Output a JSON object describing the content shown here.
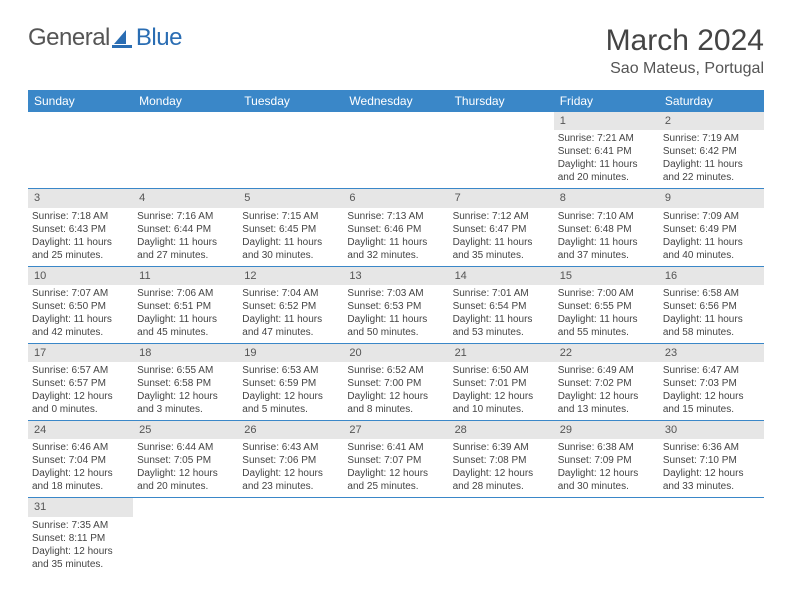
{
  "logo": {
    "general": "General",
    "blue": "Blue"
  },
  "title": "March 2024",
  "location": "Sao Mateus, Portugal",
  "colors": {
    "header_bg": "#3a87c8",
    "header_text": "#ffffff",
    "daynum_bg": "#e6e6e6",
    "row_border": "#3a87c8",
    "text": "#444444"
  },
  "weekdays": [
    "Sunday",
    "Monday",
    "Tuesday",
    "Wednesday",
    "Thursday",
    "Friday",
    "Saturday"
  ],
  "weeks": [
    [
      null,
      null,
      null,
      null,
      null,
      {
        "n": "1",
        "sr": "Sunrise: 7:21 AM",
        "ss": "Sunset: 6:41 PM",
        "dl": "Daylight: 11 hours and 20 minutes."
      },
      {
        "n": "2",
        "sr": "Sunrise: 7:19 AM",
        "ss": "Sunset: 6:42 PM",
        "dl": "Daylight: 11 hours and 22 minutes."
      }
    ],
    [
      {
        "n": "3",
        "sr": "Sunrise: 7:18 AM",
        "ss": "Sunset: 6:43 PM",
        "dl": "Daylight: 11 hours and 25 minutes."
      },
      {
        "n": "4",
        "sr": "Sunrise: 7:16 AM",
        "ss": "Sunset: 6:44 PM",
        "dl": "Daylight: 11 hours and 27 minutes."
      },
      {
        "n": "5",
        "sr": "Sunrise: 7:15 AM",
        "ss": "Sunset: 6:45 PM",
        "dl": "Daylight: 11 hours and 30 minutes."
      },
      {
        "n": "6",
        "sr": "Sunrise: 7:13 AM",
        "ss": "Sunset: 6:46 PM",
        "dl": "Daylight: 11 hours and 32 minutes."
      },
      {
        "n": "7",
        "sr": "Sunrise: 7:12 AM",
        "ss": "Sunset: 6:47 PM",
        "dl": "Daylight: 11 hours and 35 minutes."
      },
      {
        "n": "8",
        "sr": "Sunrise: 7:10 AM",
        "ss": "Sunset: 6:48 PM",
        "dl": "Daylight: 11 hours and 37 minutes."
      },
      {
        "n": "9",
        "sr": "Sunrise: 7:09 AM",
        "ss": "Sunset: 6:49 PM",
        "dl": "Daylight: 11 hours and 40 minutes."
      }
    ],
    [
      {
        "n": "10",
        "sr": "Sunrise: 7:07 AM",
        "ss": "Sunset: 6:50 PM",
        "dl": "Daylight: 11 hours and 42 minutes."
      },
      {
        "n": "11",
        "sr": "Sunrise: 7:06 AM",
        "ss": "Sunset: 6:51 PM",
        "dl": "Daylight: 11 hours and 45 minutes."
      },
      {
        "n": "12",
        "sr": "Sunrise: 7:04 AM",
        "ss": "Sunset: 6:52 PM",
        "dl": "Daylight: 11 hours and 47 minutes."
      },
      {
        "n": "13",
        "sr": "Sunrise: 7:03 AM",
        "ss": "Sunset: 6:53 PM",
        "dl": "Daylight: 11 hours and 50 minutes."
      },
      {
        "n": "14",
        "sr": "Sunrise: 7:01 AM",
        "ss": "Sunset: 6:54 PM",
        "dl": "Daylight: 11 hours and 53 minutes."
      },
      {
        "n": "15",
        "sr": "Sunrise: 7:00 AM",
        "ss": "Sunset: 6:55 PM",
        "dl": "Daylight: 11 hours and 55 minutes."
      },
      {
        "n": "16",
        "sr": "Sunrise: 6:58 AM",
        "ss": "Sunset: 6:56 PM",
        "dl": "Daylight: 11 hours and 58 minutes."
      }
    ],
    [
      {
        "n": "17",
        "sr": "Sunrise: 6:57 AM",
        "ss": "Sunset: 6:57 PM",
        "dl": "Daylight: 12 hours and 0 minutes."
      },
      {
        "n": "18",
        "sr": "Sunrise: 6:55 AM",
        "ss": "Sunset: 6:58 PM",
        "dl": "Daylight: 12 hours and 3 minutes."
      },
      {
        "n": "19",
        "sr": "Sunrise: 6:53 AM",
        "ss": "Sunset: 6:59 PM",
        "dl": "Daylight: 12 hours and 5 minutes."
      },
      {
        "n": "20",
        "sr": "Sunrise: 6:52 AM",
        "ss": "Sunset: 7:00 PM",
        "dl": "Daylight: 12 hours and 8 minutes."
      },
      {
        "n": "21",
        "sr": "Sunrise: 6:50 AM",
        "ss": "Sunset: 7:01 PM",
        "dl": "Daylight: 12 hours and 10 minutes."
      },
      {
        "n": "22",
        "sr": "Sunrise: 6:49 AM",
        "ss": "Sunset: 7:02 PM",
        "dl": "Daylight: 12 hours and 13 minutes."
      },
      {
        "n": "23",
        "sr": "Sunrise: 6:47 AM",
        "ss": "Sunset: 7:03 PM",
        "dl": "Daylight: 12 hours and 15 minutes."
      }
    ],
    [
      {
        "n": "24",
        "sr": "Sunrise: 6:46 AM",
        "ss": "Sunset: 7:04 PM",
        "dl": "Daylight: 12 hours and 18 minutes."
      },
      {
        "n": "25",
        "sr": "Sunrise: 6:44 AM",
        "ss": "Sunset: 7:05 PM",
        "dl": "Daylight: 12 hours and 20 minutes."
      },
      {
        "n": "26",
        "sr": "Sunrise: 6:43 AM",
        "ss": "Sunset: 7:06 PM",
        "dl": "Daylight: 12 hours and 23 minutes."
      },
      {
        "n": "27",
        "sr": "Sunrise: 6:41 AM",
        "ss": "Sunset: 7:07 PM",
        "dl": "Daylight: 12 hours and 25 minutes."
      },
      {
        "n": "28",
        "sr": "Sunrise: 6:39 AM",
        "ss": "Sunset: 7:08 PM",
        "dl": "Daylight: 12 hours and 28 minutes."
      },
      {
        "n": "29",
        "sr": "Sunrise: 6:38 AM",
        "ss": "Sunset: 7:09 PM",
        "dl": "Daylight: 12 hours and 30 minutes."
      },
      {
        "n": "30",
        "sr": "Sunrise: 6:36 AM",
        "ss": "Sunset: 7:10 PM",
        "dl": "Daylight: 12 hours and 33 minutes."
      }
    ],
    [
      {
        "n": "31",
        "sr": "Sunrise: 7:35 AM",
        "ss": "Sunset: 8:11 PM",
        "dl": "Daylight: 12 hours and 35 minutes."
      },
      null,
      null,
      null,
      null,
      null,
      null
    ]
  ]
}
